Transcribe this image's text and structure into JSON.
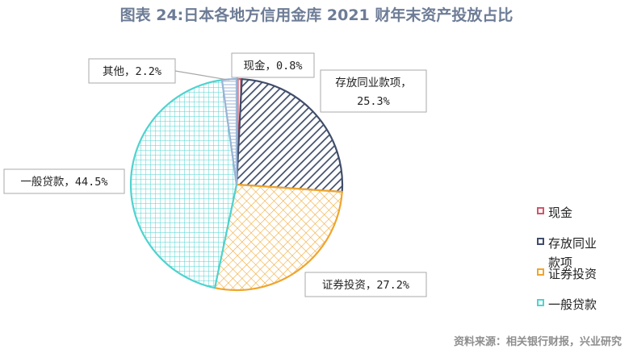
{
  "title": "图表 24:日本各地方信用金库 2021 财年末资产投放占比",
  "source": "资料来源：相关银行财报，兴业研究",
  "chart_data": {
    "type": "pie",
    "title": "图表 24:日本各地方信用金库 2021 财年末资产投放占比",
    "legend_position": "right",
    "slices": [
      {
        "name": "现金",
        "value": 0.8,
        "label": "现金，0.8%",
        "color": "#d0566a",
        "pattern": "vertical"
      },
      {
        "name": "存放同业款项",
        "value": 25.3,
        "label_lines": [
          "存放同业款项，",
          "25.3%"
        ],
        "color": "#3f4d6a",
        "pattern": "diagonal"
      },
      {
        "name": "证券投资",
        "value": 27.2,
        "label": "证券投资，27.2%",
        "color": "#f0a52c",
        "pattern": "diamond"
      },
      {
        "name": "一般贷款",
        "value": 44.5,
        "label": "一般贷款，44.5%",
        "color": "#4fd3cf",
        "pattern": "grid"
      },
      {
        "name": "其他",
        "value": 2.2,
        "label": "其他，2.2%",
        "color": "#9bb4d6",
        "pattern": "horizontal"
      }
    ],
    "legend": [
      {
        "name": "现金",
        "lines": [
          "现金"
        ],
        "color": "#d0566a"
      },
      {
        "name": "存放同业款项",
        "lines": [
          "存放同业",
          "款项"
        ],
        "color": "#3f4d6a"
      },
      {
        "name": "证券投资",
        "lines": [
          "证券投资"
        ],
        "color": "#f0a52c"
      },
      {
        "name": "一般贷款",
        "lines": [
          "一般贷款"
        ],
        "color": "#4fd3cf"
      }
    ]
  }
}
